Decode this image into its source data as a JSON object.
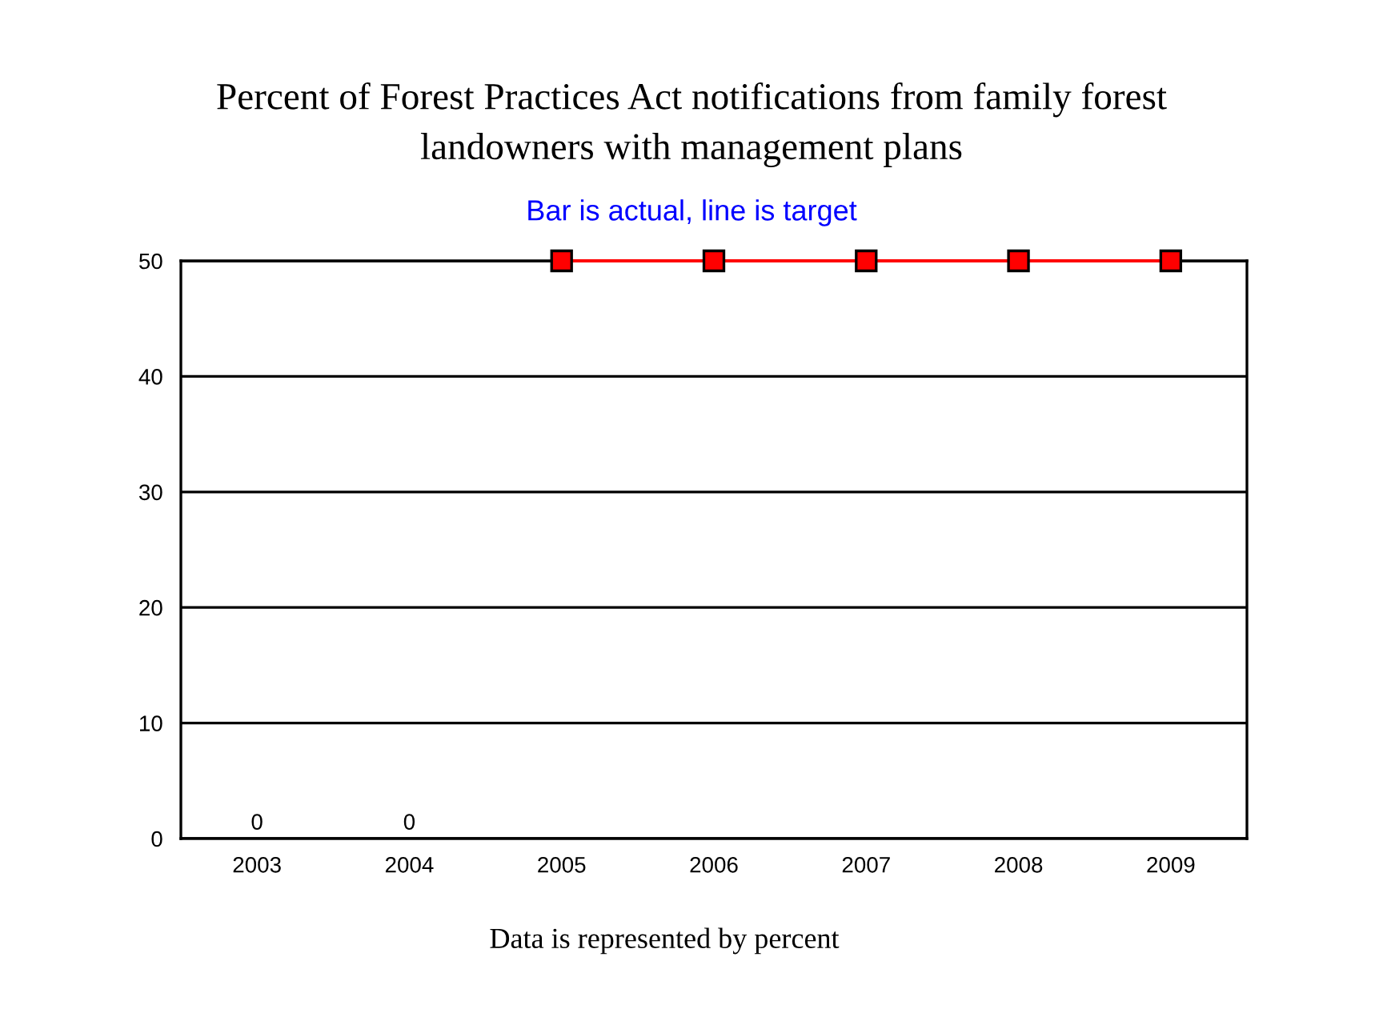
{
  "chart_data": {
    "type": "bar",
    "title": "Percent of Forest Practices Act notifications from family forest\nlandowners with management plans",
    "subtitle": "Bar is actual, line is target",
    "categories": [
      "2003",
      "2004",
      "2005",
      "2006",
      "2007",
      "2008",
      "2009"
    ],
    "series": [
      {
        "color": "#0000ff",
        "values": [
          0,
          0,
          null,
          null,
          null,
          null,
          null
        ],
        "value_labels": [
          "0",
          "0",
          null,
          null,
          null,
          null,
          null
        ]
      },
      {
        "type": "line",
        "color": "#ff0000",
        "values": [
          null,
          null,
          50,
          50,
          50,
          50,
          50
        ],
        "marker": "square",
        "line_style": "solid"
      }
    ],
    "ylim": [
      0,
      50
    ],
    "yticks": [
      0,
      10,
      20,
      30,
      40,
      50
    ],
    "grid": "y",
    "legend": false,
    "annotations": [
      "Data is represented by percent"
    ]
  }
}
